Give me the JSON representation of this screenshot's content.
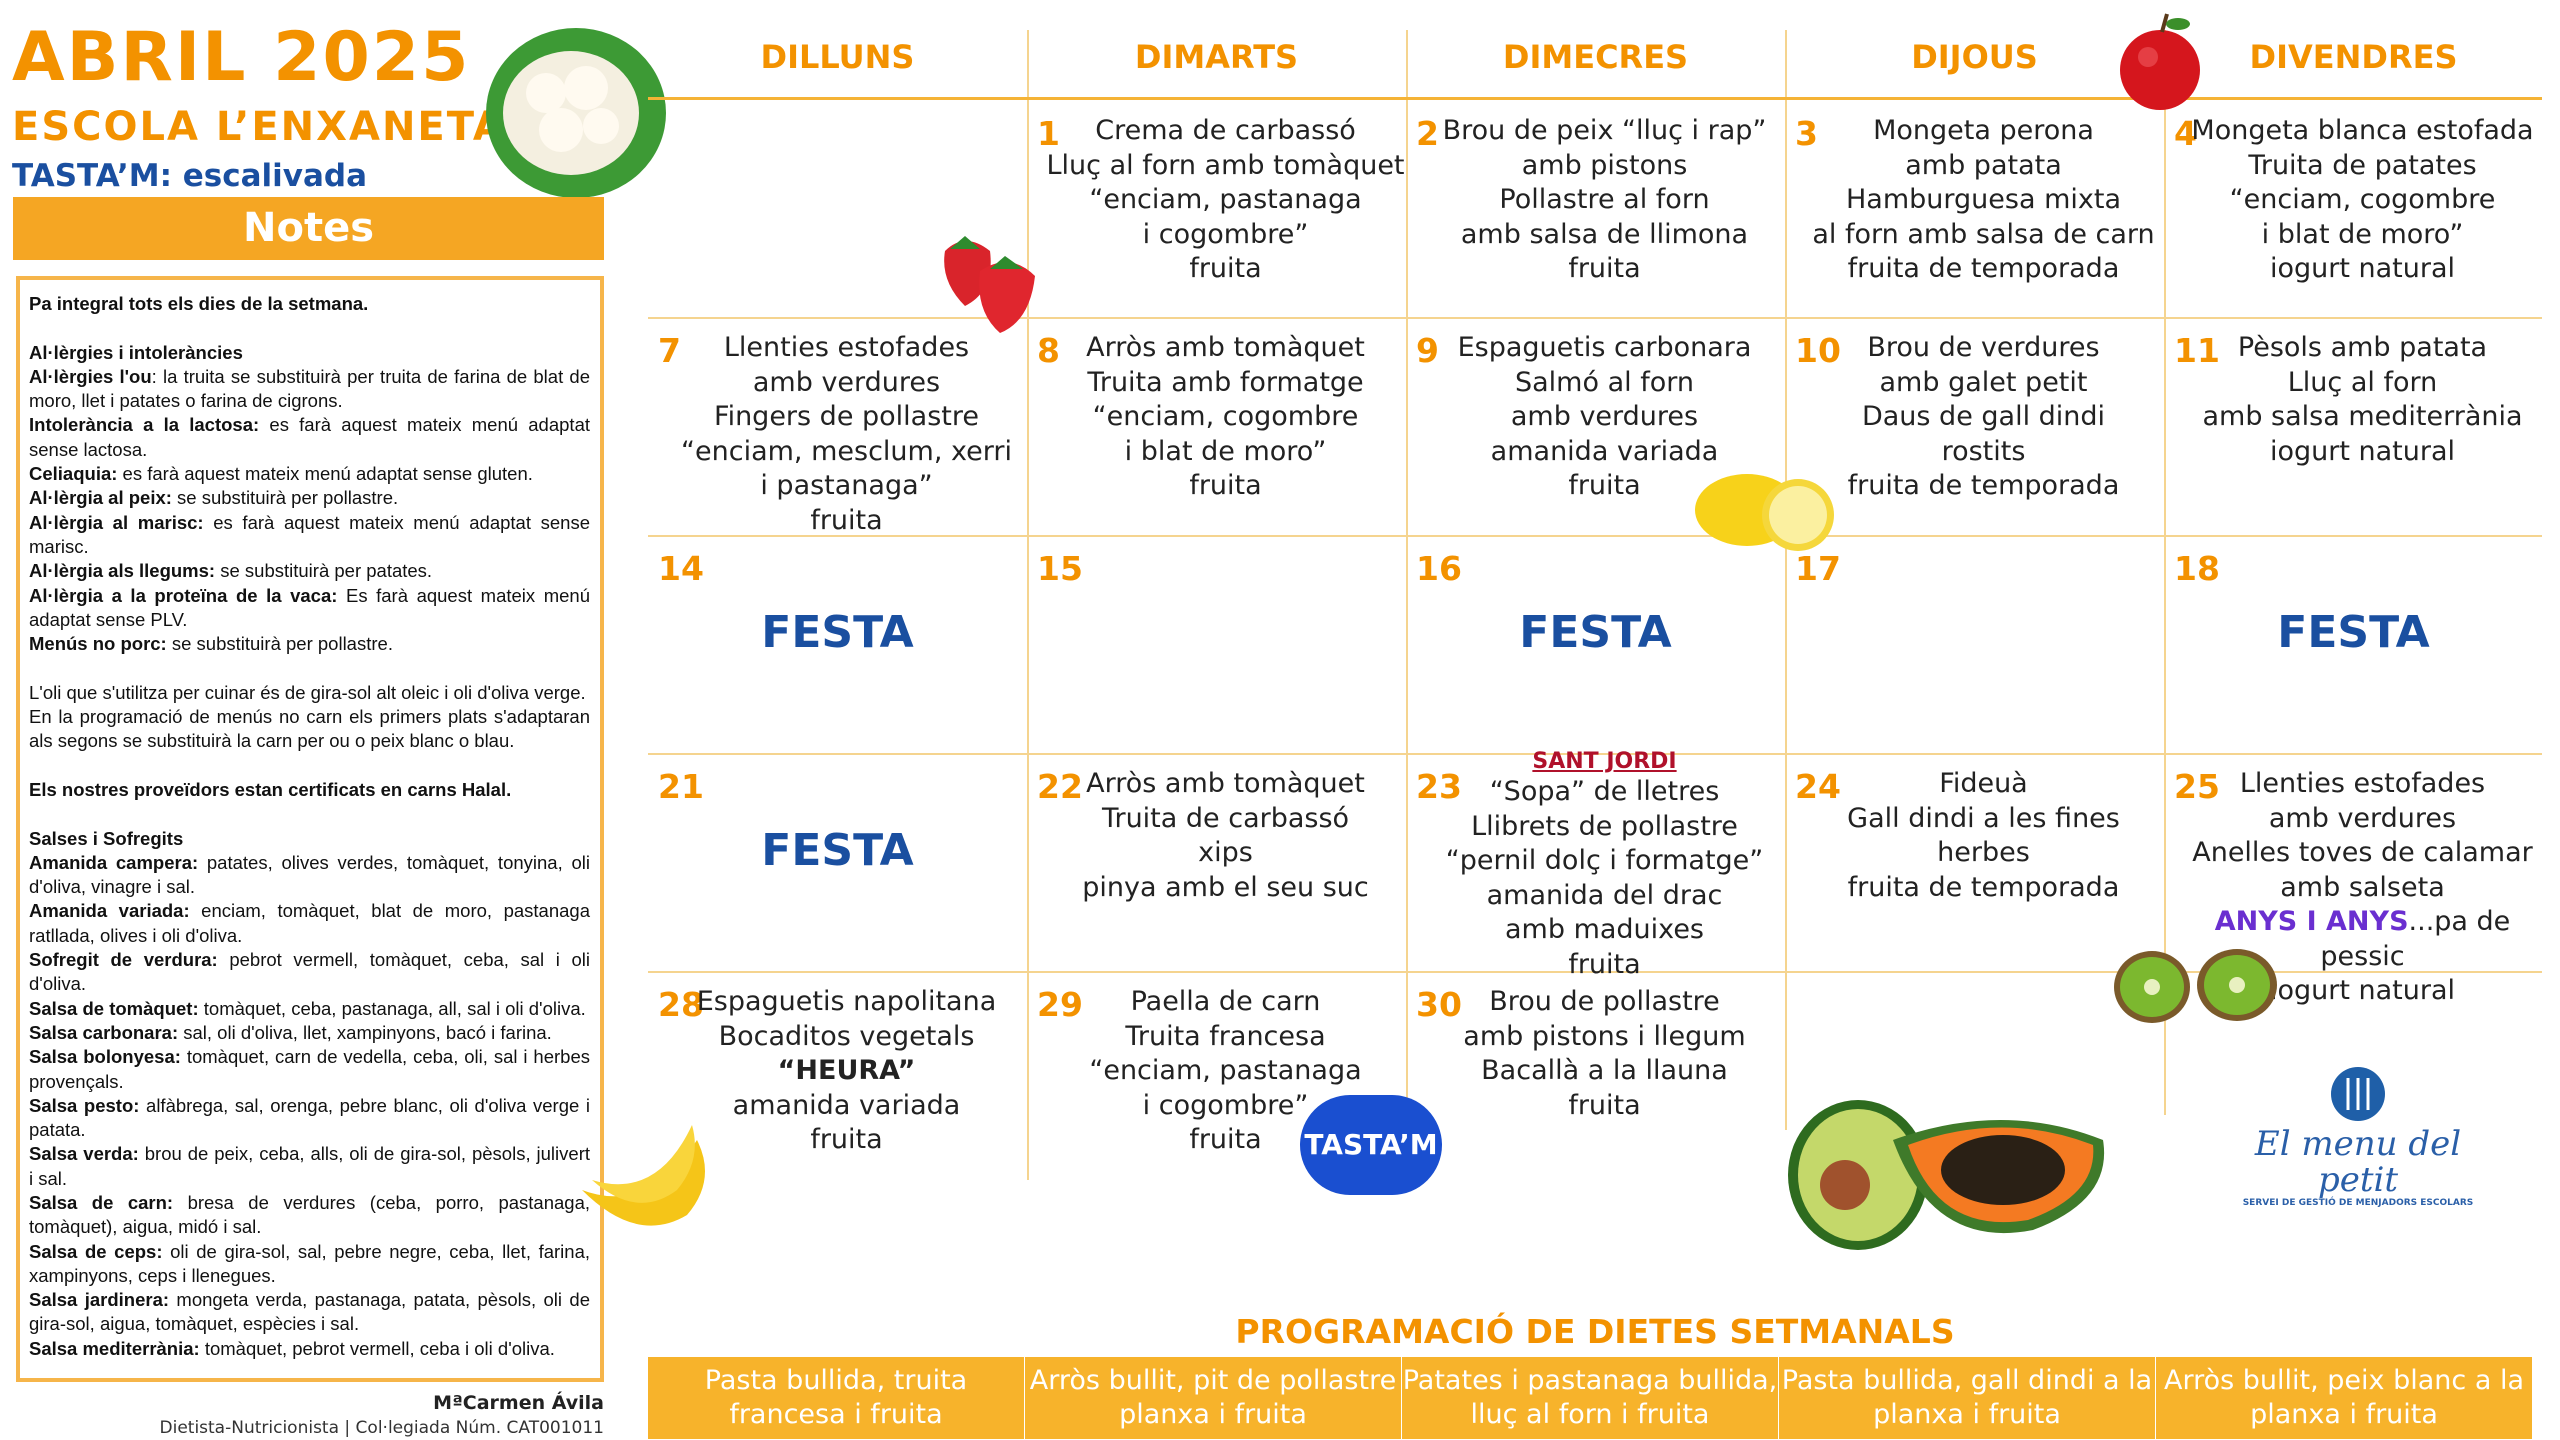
{
  "header": {
    "title": "ABRIL 2025",
    "school": "ESCOLA L’ENXANETA",
    "tastam": "TASTA’M: escalivada"
  },
  "notes": {
    "title": "Notes",
    "items": [
      {
        "b": "Pa integral tots els dies de la setmana.",
        "t": ""
      },
      {
        "b": "",
        "t": ""
      },
      {
        "b": "Al·lèrgies i intoleràncies",
        "t": ""
      },
      {
        "b": "Al·lèrgies l'ou",
        "t": ": la truita se substituirà per truita de farina de blat de moro, llet i patates o farina de cigrons."
      },
      {
        "b": "Intolerància a la lactosa:",
        "t": " es farà aquest mateix menú adaptat sense lactosa."
      },
      {
        "b": "Celiaquia:",
        "t": " es farà aquest mateix menú adaptat sense gluten."
      },
      {
        "b": "Al·lèrgia al peix:",
        "t": " se substituirà per pollastre."
      },
      {
        "b": "Al·lèrgia al marisc:",
        "t": " es farà aquest mateix menú adaptat sense marisc."
      },
      {
        "b": "Al·lèrgia als llegums:",
        "t": " se substituirà per patates."
      },
      {
        "b": "Al·lèrgia a la proteïna de la vaca:",
        "t": " Es farà aquest mateix menú adaptat sense PLV."
      },
      {
        "b": "Menús no porc:",
        "t": " se substituirà per pollastre."
      },
      {
        "b": "",
        "t": ""
      },
      {
        "b": "",
        "t": "L'oli que s'utilitza per cuinar és de gira-sol alt oleic i oli d'oliva verge."
      },
      {
        "b": "",
        "t": "En la programació de menús no carn els primers plats s'adaptaran als segons se substituirà la carn per ou o peix blanc o blau."
      },
      {
        "b": "",
        "t": ""
      },
      {
        "b": "Els nostres proveïdors estan certificats en carns Halal.",
        "t": ""
      },
      {
        "b": "",
        "t": ""
      },
      {
        "b": "Salses i Sofregits",
        "t": ""
      },
      {
        "b": "Amanida campera:",
        "t": " patates, olives verdes, tomàquet, tonyina, oli d'oliva, vinagre i sal."
      },
      {
        "b": "Amanida variada:",
        "t": " enciam, tomàquet, blat de moro, pastanaga ratllada, olives i oli d'oliva."
      },
      {
        "b": "Sofregit de verdura:",
        "t": " pebrot vermell, tomàquet, ceba, sal i oli d'oliva."
      },
      {
        "b": "Salsa de tomàquet:",
        "t": " tomàquet, ceba, pastanaga, all, sal i oli d'oliva."
      },
      {
        "b": "Salsa carbonara:",
        "t": " sal, oli d'oliva, llet, xampinyons, bacó i farina."
      },
      {
        "b": "Salsa bolonyesa:",
        "t": " tomàquet, carn de vedella, ceba, oli, sal i herbes provençals."
      },
      {
        "b": "Salsa pesto:",
        "t": " alfàbrega, sal, orenga, pebre blanc, oli d'oliva verge i patata."
      },
      {
        "b": "Salsa verda:",
        "t": " brou de peix, ceba, alls, oli de gira-sol, pèsols, julivert i sal."
      },
      {
        "b": "Salsa de carn:",
        "t": " bresa de verdures (ceba, porro, pastanaga, tomàquet), aigua, midó i sal."
      },
      {
        "b": "Salsa de ceps:",
        "t": " oli de gira-sol, sal, pebre negre, ceba, llet, farina, xampinyons, ceps i llenegues."
      },
      {
        "b": "Salsa jardinera:",
        "t": " mongeta verda, pastanaga, patata, pèsols, oli de gira-sol, aigua, tomàquet, espècies i sal."
      },
      {
        "b": "Salsa mediterrània:",
        "t": " tomàquet, pebrot vermell, ceba i oli d'oliva."
      }
    ]
  },
  "signature": {
    "name": "MªCarmen Ávila",
    "role": "Dietista-Nutricionista | Col·legiada Núm. CAT001011"
  },
  "weekdays": [
    "DILLUNS",
    "DIMARTS",
    "DIMECRES",
    "DIJOUS",
    "DIVENDRES"
  ],
  "weeks": [
    [
      {
        "num": "",
        "lines": []
      },
      {
        "num": "1",
        "lines": [
          "Crema de carbassó",
          "Lluç al forn amb tomàquet",
          "“enciam, pastanaga",
          "i cogombre”",
          "fruita"
        ]
      },
      {
        "num": "2",
        "lines": [
          "Brou de peix “lluç i rap”",
          "amb pistons",
          "Pollastre al forn",
          "amb salsa de llimona",
          "fruita"
        ]
      },
      {
        "num": "3",
        "lines": [
          "Mongeta perona",
          "amb patata",
          "Hamburguesa mixta",
          "al forn amb salsa de carn",
          "fruita de temporada"
        ]
      },
      {
        "num": "4",
        "lines": [
          "Mongeta blanca estofada",
          "Truita de patates",
          "“enciam, cogombre",
          "i blat de moro”",
          "iogurt natural"
        ]
      }
    ],
    [
      {
        "num": "7",
        "lines": [
          "Llenties estofades",
          "amb verdures",
          "Fingers de pollastre",
          "“enciam, mesclum, xerri",
          "i pastanaga”",
          "fruita"
        ]
      },
      {
        "num": "8",
        "lines": [
          "Arròs amb tomàquet",
          "Truita amb formatge",
          "“enciam, cogombre",
          "i blat de moro”",
          "fruita"
        ]
      },
      {
        "num": "9",
        "lines": [
          "Espaguetis carbonara",
          "Salmó al forn",
          "amb verdures",
          "amanida variada",
          "fruita"
        ]
      },
      {
        "num": "10",
        "lines": [
          "Brou de verdures",
          "amb galet petit",
          "Daus de gall dindi",
          "rostits",
          "fruita de temporada"
        ]
      },
      {
        "num": "11",
        "lines": [
          "Pèsols amb patata",
          "Lluç al forn",
          "amb salsa mediterrània",
          "iogurt natural"
        ]
      }
    ],
    [
      {
        "num": "14",
        "festa": "FESTA",
        "lines": []
      },
      {
        "num": "15",
        "lines": []
      },
      {
        "num": "16",
        "festa": "FESTA",
        "lines": []
      },
      {
        "num": "17",
        "lines": []
      },
      {
        "num": "18",
        "festa": "FESTA",
        "lines": []
      }
    ],
    [
      {
        "num": "21",
        "festa": "FESTA",
        "lines": []
      },
      {
        "num": "22",
        "lines": [
          "Arròs amb tomàquet",
          "Truita de carbassó",
          "xips",
          "pinya amb el seu suc"
        ]
      },
      {
        "num": "23",
        "event": "SANT JORDI",
        "lines": [
          "“Sopa” de lletres",
          "Llibrets de pollastre",
          "“pernil dolç i formatge”",
          "amanida del drac",
          "amb maduixes",
          "fruita"
        ]
      },
      {
        "num": "24",
        "lines": [
          "Fideuà",
          "Gall dindi a les fines",
          "herbes",
          "fruita de temporada"
        ]
      },
      {
        "num": "25",
        "lines": [
          "Llenties estofades",
          "amb verdures",
          "Anelles toves de calamar",
          "amb salseta",
          {
            "hl": "ANYS I ANYS",
            "t": "...pa de pessic"
          },
          "iogurt natural"
        ]
      }
    ],
    [
      {
        "num": "28",
        "lines": [
          "Espaguetis  napolitana",
          "Bocaditos vegetals",
          {
            "b": "“HEURA”"
          },
          "amanida variada",
          "fruita"
        ]
      },
      {
        "num": "29",
        "lines": [
          "Paella de carn",
          "Truita francesa",
          "“enciam, pastanaga",
          "i cogombre”",
          "fruita"
        ]
      },
      {
        "num": "30",
        "lines": [
          "Brou de pollastre",
          "amb pistons i llegum",
          "Bacallà a la llauna",
          "fruita"
        ]
      },
      {
        "num": "",
        "lines": []
      },
      {
        "num": "",
        "lines": []
      }
    ]
  ],
  "badge": "TASTA’M",
  "logo": {
    "text": "El menu del petit",
    "tagline": "SERVEI DE GESTIÓ DE MENJADORS ESCOLARS"
  },
  "diets": {
    "title": "PROGRAMACIÓ DE DIETES SETMANALS",
    "items": [
      "Pasta bullida, truita francesa i fruita",
      "Arròs bullit, pit de pollastre planxa i fruita",
      "Patates i pastanaga bullida, lluç al forn i fruita",
      "Pasta bullida, gall dindi a la planxa i fruita",
      "Arròs bullit, peix blanc a la planxa i fruita"
    ]
  },
  "colors": {
    "orange": "#f39200",
    "blue": "#1a4fa0",
    "bar": "#f7b32b",
    "grid": "#f5d48f",
    "event": "#b0112b",
    "highlight": "#6a2fd0"
  }
}
